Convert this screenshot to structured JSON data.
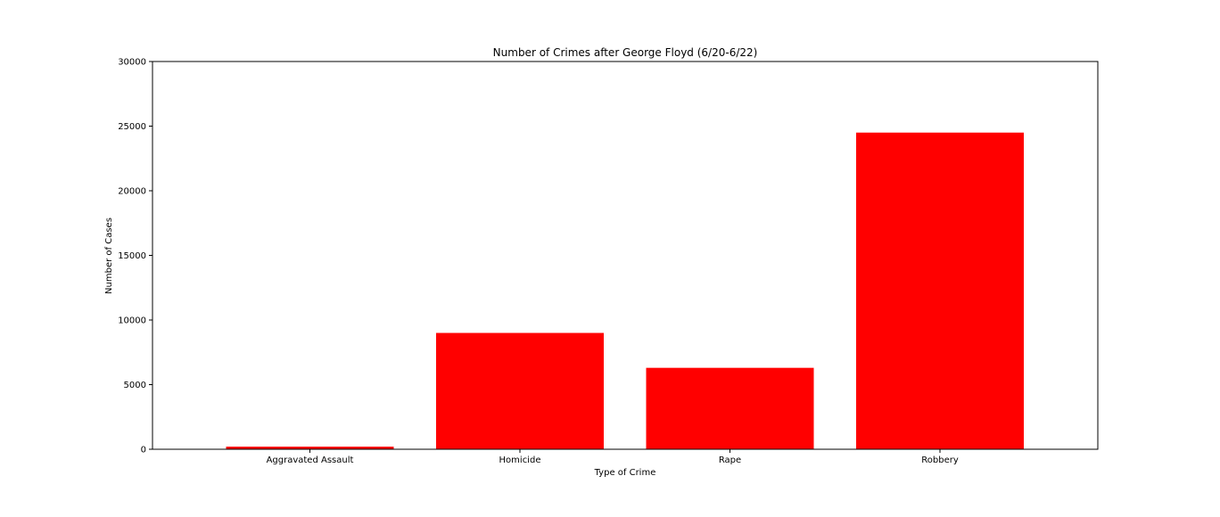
{
  "chart_data": {
    "type": "bar",
    "title": "Number of Crimes after George Floyd (6/20-6/22)",
    "xlabel": "Type of Crime",
    "ylabel": "Number of Cases",
    "categories": [
      "Aggravated Assault",
      "Homicide",
      "Rape",
      "Robbery"
    ],
    "values": [
      200,
      9000,
      6300,
      24500
    ],
    "ylim": [
      0,
      30000
    ],
    "yticks": [
      0,
      5000,
      10000,
      15000,
      20000,
      25000,
      30000
    ],
    "bar_color": "#ff0000",
    "grid": false,
    "legend": "none"
  }
}
